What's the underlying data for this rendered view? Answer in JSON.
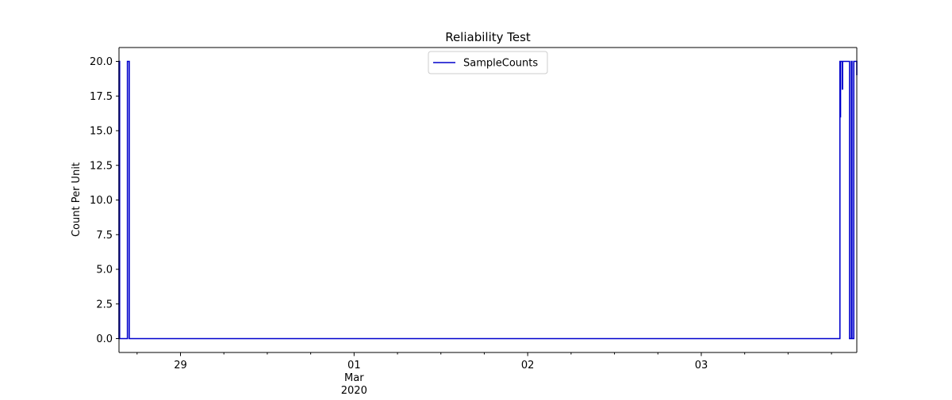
{
  "chart_data": {
    "type": "line",
    "title": "Reliability Test",
    "xlabel": "",
    "ylabel": "Count Per Unit",
    "x_range": [
      "2020-02-28T15:30",
      "2020-03-03T21:30"
    ],
    "ylim": [
      -1.0,
      21.0
    ],
    "y_ticks": [
      0.0,
      2.5,
      5.0,
      7.5,
      10.0,
      12.5,
      15.0,
      17.5,
      20.0
    ],
    "y_tick_labels": [
      "0.0",
      "2.5",
      "5.0",
      "7.5",
      "10.0",
      "12.5",
      "15.0",
      "17.5",
      "20.0"
    ],
    "x_major_ticks": [
      {
        "x": "2020-02-29T00:00",
        "label": [
          "29"
        ]
      },
      {
        "x": "2020-03-01T00:00",
        "label": [
          "01",
          "Mar",
          "2020"
        ]
      },
      {
        "x": "2020-03-02T00:00",
        "label": [
          "02"
        ]
      },
      {
        "x": "2020-03-03T00:00",
        "label": [
          "03"
        ]
      }
    ],
    "x_minor_ticks": [
      "2020-02-28T18:00",
      "2020-02-29T06:00",
      "2020-02-29T12:00",
      "2020-02-29T18:00",
      "2020-03-01T06:00",
      "2020-03-01T12:00",
      "2020-03-01T18:00",
      "2020-03-02T06:00",
      "2020-03-02T12:00",
      "2020-03-02T18:00",
      "2020-03-03T06:00",
      "2020-03-03T12:00",
      "2020-03-03T18:00"
    ],
    "grid": false,
    "legend": {
      "position": "upper center"
    },
    "series": [
      {
        "name": "SampleCounts",
        "color": "#0000cc",
        "x": [
          "2020-02-28T15:30",
          "2020-02-28T15:30",
          "2020-02-28T15:35",
          "2020-02-28T15:35",
          "2020-02-28T15:45",
          "2020-02-28T15:45",
          "2020-02-28T16:40",
          "2020-02-28T16:40",
          "2020-02-28T16:55",
          "2020-02-28T16:55",
          "2020-03-03T19:10",
          "2020-03-03T19:10",
          "2020-03-03T19:12",
          "2020-03-03T19:12",
          "2020-03-03T19:15",
          "2020-03-03T19:15",
          "2020-03-03T19:30",
          "2020-03-03T19:30",
          "2020-03-03T19:32",
          "2020-03-03T19:32",
          "2020-03-03T20:30",
          "2020-03-03T20:30",
          "2020-03-03T20:45",
          "2020-03-03T20:45",
          "2020-03-03T20:50",
          "2020-03-03T20:50",
          "2020-03-03T21:05",
          "2020-03-03T21:05",
          "2020-03-03T21:10",
          "2020-03-03T21:10",
          "2020-03-03T21:30",
          "2020-03-03T21:30"
        ],
        "y": [
          0,
          20,
          20,
          0,
          0,
          0,
          0,
          20,
          20,
          0,
          0,
          20,
          20,
          16,
          16,
          20,
          20,
          18,
          18,
          20,
          20,
          0,
          0,
          20,
          20,
          0,
          0,
          20,
          20,
          20,
          20,
          19
        ]
      }
    ]
  }
}
